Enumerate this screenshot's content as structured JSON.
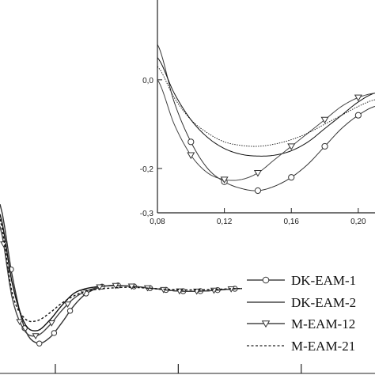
{
  "chart_data": [
    {
      "type": "line",
      "panel": "main",
      "xlim": [
        0.055,
        0.36
      ],
      "ylim": [
        -0.32,
        0.35
      ],
      "x_tick_values": [
        0.1,
        0.2,
        0.3
      ],
      "legend": {
        "placement": "bottom-right",
        "entries": [
          {
            "label": "DK-EAM-1",
            "style": "solid",
            "marker": "circle"
          },
          {
            "label": "DK-EAM-2",
            "style": "solid",
            "marker": "none"
          },
          {
            "label": "M-EAM-12",
            "style": "solid",
            "marker": "triangle-down"
          },
          {
            "label": "M-EAM-21",
            "style": "dashed",
            "marker": "none"
          }
        ]
      },
      "series": [
        {
          "name": "DK-EAM-1",
          "style": "solid",
          "marker": "circle",
          "x": [
            0.055,
            0.065,
            0.075,
            0.085,
            0.095,
            0.105,
            0.115,
            0.125,
            0.14,
            0.16,
            0.18,
            0.2,
            0.22,
            0.25,
            0.3,
            0.36
          ],
          "y": [
            0.34,
            0.05,
            -0.16,
            -0.22,
            -0.2,
            -0.14,
            -0.07,
            -0.02,
            0.01,
            0.01,
            0.0,
            -0.01,
            -0.01,
            0.0,
            0.0,
            0.0
          ],
          "marker_x": [
            0.064,
            0.075,
            0.087,
            0.099,
            0.112,
            0.125,
            0.138,
            0.151,
            0.164,
            0.177,
            0.19,
            0.204,
            0.218,
            0.232,
            0.246,
            0.26,
            0.274,
            0.288,
            0.302,
            0.316,
            0.33,
            0.344,
            0.357
          ]
        },
        {
          "name": "DK-EAM-2",
          "style": "solid",
          "marker": "none",
          "x": [
            0.055,
            0.065,
            0.075,
            0.085,
            0.095,
            0.105,
            0.115,
            0.125,
            0.14,
            0.16,
            0.18,
            0.2,
            0.22,
            0.25,
            0.3,
            0.36
          ],
          "y": [
            0.3,
            0.02,
            -0.14,
            -0.17,
            -0.13,
            -0.07,
            -0.02,
            0.0,
            0.01,
            0.01,
            0.0,
            -0.01,
            -0.01,
            0.0,
            0.0,
            0.0
          ]
        },
        {
          "name": "M-EAM-12",
          "style": "solid",
          "marker": "triangle-down",
          "x": [
            0.055,
            0.065,
            0.075,
            0.085,
            0.095,
            0.105,
            0.115,
            0.125,
            0.14,
            0.16,
            0.18,
            0.2,
            0.22,
            0.25,
            0.3,
            0.36
          ],
          "y": [
            0.25,
            -0.04,
            -0.17,
            -0.19,
            -0.15,
            -0.09,
            -0.04,
            -0.01,
            0.01,
            0.01,
            0.0,
            -0.01,
            -0.01,
            0.0,
            0.0,
            0.0
          ],
          "marker_x": [
            0.058,
            0.071,
            0.084,
            0.097,
            0.11,
            0.123,
            0.136,
            0.149,
            0.162,
            0.175,
            0.188,
            0.201,
            0.215,
            0.229,
            0.243,
            0.257,
            0.271,
            0.285,
            0.299,
            0.313,
            0.327,
            0.341,
            0.355
          ]
        },
        {
          "name": "M-EAM-21",
          "style": "dashed",
          "marker": "none",
          "x": [
            0.055,
            0.065,
            0.075,
            0.085,
            0.095,
            0.105,
            0.115,
            0.125,
            0.14,
            0.16,
            0.18,
            0.2,
            0.22,
            0.25,
            0.3,
            0.36
          ],
          "y": [
            0.28,
            -0.02,
            -0.12,
            -0.13,
            -0.1,
            -0.06,
            -0.03,
            -0.01,
            0.0,
            0.005,
            0.0,
            -0.005,
            -0.005,
            0.0,
            0.0,
            0.0
          ]
        }
      ]
    },
    {
      "type": "line",
      "panel": "inset",
      "xlim": [
        0.08,
        0.21
      ],
      "ylim": [
        -0.3,
        0.18
      ],
      "x_ticks": [
        "0,08",
        "0,12",
        "0,16",
        "0,20"
      ],
      "x_tick_values": [
        0.08,
        0.12,
        0.16,
        0.2
      ],
      "y_ticks": [
        "0,0",
        "-0,2",
        "-0,3"
      ],
      "y_tick_values": [
        0.0,
        -0.2,
        -0.3
      ],
      "series": [
        {
          "name": "DK-EAM-1",
          "style": "solid",
          "marker": "circle",
          "x": [
            0.08,
            0.09,
            0.1,
            0.11,
            0.12,
            0.13,
            0.14,
            0.15,
            0.16,
            0.17,
            0.18,
            0.19,
            0.2,
            0.21
          ],
          "y": [
            0.08,
            -0.05,
            -0.14,
            -0.2,
            -0.23,
            -0.245,
            -0.25,
            -0.24,
            -0.22,
            -0.19,
            -0.15,
            -0.11,
            -0.08,
            -0.06
          ],
          "marker_x": [
            0.1,
            0.12,
            0.14,
            0.16,
            0.18,
            0.2
          ]
        },
        {
          "name": "DK-EAM-2",
          "style": "solid",
          "marker": "none",
          "x": [
            0.08,
            0.09,
            0.1,
            0.11,
            0.12,
            0.13,
            0.14,
            0.15,
            0.16,
            0.17,
            0.18,
            0.19,
            0.2,
            0.21
          ],
          "y": [
            0.05,
            -0.03,
            -0.09,
            -0.13,
            -0.155,
            -0.168,
            -0.172,
            -0.17,
            -0.16,
            -0.14,
            -0.11,
            -0.08,
            -0.05,
            -0.03
          ]
        },
        {
          "name": "M-EAM-12",
          "style": "solid",
          "marker": "triangle-down",
          "x": [
            0.08,
            0.09,
            0.1,
            0.11,
            0.12,
            0.13,
            0.14,
            0.15,
            0.16,
            0.17,
            0.18,
            0.19,
            0.2,
            0.21
          ],
          "y": [
            0.0,
            -0.1,
            -0.17,
            -0.21,
            -0.225,
            -0.225,
            -0.21,
            -0.18,
            -0.15,
            -0.12,
            -0.09,
            -0.06,
            -0.04,
            -0.03
          ],
          "marker_x": [
            0.1,
            0.12,
            0.14,
            0.16,
            0.18,
            0.2
          ]
        },
        {
          "name": "M-EAM-21",
          "style": "dashed",
          "marker": "none",
          "x": [
            0.08,
            0.09,
            0.1,
            0.11,
            0.12,
            0.13,
            0.14,
            0.15,
            0.16,
            0.17,
            0.18,
            0.19,
            0.2,
            0.21
          ],
          "y": [
            0.03,
            -0.04,
            -0.09,
            -0.12,
            -0.14,
            -0.148,
            -0.15,
            -0.145,
            -0.135,
            -0.12,
            -0.1,
            -0.08,
            -0.06,
            -0.045
          ]
        }
      ]
    }
  ]
}
